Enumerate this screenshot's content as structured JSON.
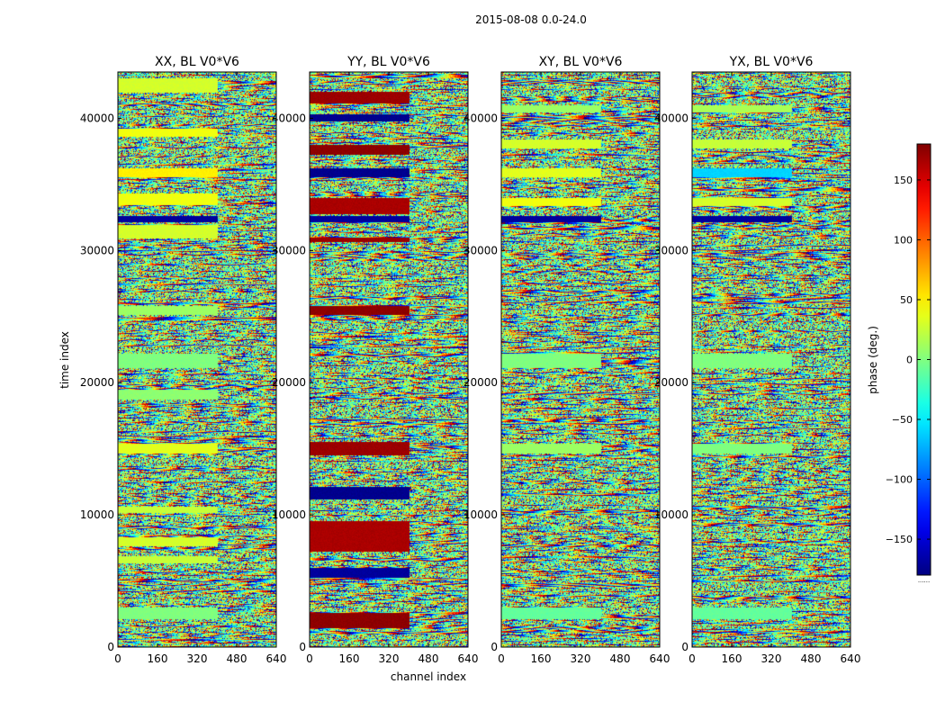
{
  "chart_data": {
    "type": "heatmap",
    "suptitle": "2015-08-08 0.0-24.0",
    "xlabel": "channel index",
    "ylabel": "time index",
    "xlim": [
      0,
      640
    ],
    "ylim": [
      0,
      43500
    ],
    "xticks": [
      0,
      160,
      320,
      480,
      640
    ],
    "yticks": [
      0,
      10000,
      20000,
      30000,
      40000
    ],
    "colormap": "jet",
    "panels": [
      {
        "title": "XX, BL V0*V6",
        "product": "XX",
        "baseline": "V0*V6",
        "smooth_bands": [
          {
            "t0": 43000,
            "t1": 42000,
            "phase": 30
          },
          {
            "t0": 39200,
            "t1": 38700,
            "phase": 40
          },
          {
            "t0": 36200,
            "t1": 35600,
            "phase": 50
          },
          {
            "t0": 34300,
            "t1": 33500,
            "phase": 40
          },
          {
            "t0": 32600,
            "t1": 32200,
            "phase": -170
          },
          {
            "t0": 31900,
            "t1": 31000,
            "phase": 30
          },
          {
            "t0": 25800,
            "t1": 25200,
            "phase": 10
          },
          {
            "t0": 22200,
            "t1": 21200,
            "phase": 0
          },
          {
            "t0": 19500,
            "t1": 18800,
            "phase": 5
          },
          {
            "t0": 15400,
            "t1": 14700,
            "phase": 35
          },
          {
            "t0": 10600,
            "t1": 10200,
            "phase": 25
          },
          {
            "t0": 8300,
            "t1": 7700,
            "phase": 30
          },
          {
            "t0": 6900,
            "t1": 6400,
            "phase": 25
          },
          {
            "t0": 3000,
            "t1": 2200,
            "phase": 0
          }
        ]
      },
      {
        "title": "YY, BL V0*V6",
        "product": "YY",
        "baseline": "V0*V6",
        "smooth_bands": [
          {
            "t0": 42000,
            "t1": 41200,
            "phase": 170
          },
          {
            "t0": 40300,
            "t1": 39800,
            "phase": -175
          },
          {
            "t0": 38000,
            "t1": 37300,
            "phase": 175
          },
          {
            "t0": 36200,
            "t1": 35600,
            "phase": -175
          },
          {
            "t0": 34000,
            "t1": 32800,
            "phase": 165
          },
          {
            "t0": 32600,
            "t1": 32200,
            "phase": -170
          },
          {
            "t0": 31000,
            "t1": 30700,
            "phase": 170
          },
          {
            "t0": 25800,
            "t1": 25200,
            "phase": 175
          },
          {
            "t0": 15500,
            "t1": 14600,
            "phase": 170
          },
          {
            "t0": 12100,
            "t1": 11200,
            "phase": -175
          },
          {
            "t0": 9500,
            "t1": 7300,
            "phase": 165
          },
          {
            "t0": 6000,
            "t1": 5300,
            "phase": -170
          },
          {
            "t0": 2600,
            "t1": 1500,
            "phase": 175
          }
        ]
      },
      {
        "title": "XY, BL V0*V6",
        "product": "XY",
        "baseline": "V0*V6",
        "smooth_bands": [
          {
            "t0": 41000,
            "t1": 40500,
            "phase": 10
          },
          {
            "t0": 38400,
            "t1": 37800,
            "phase": 30
          },
          {
            "t0": 36200,
            "t1": 35600,
            "phase": 35
          },
          {
            "t0": 34000,
            "t1": 33400,
            "phase": 40
          },
          {
            "t0": 32600,
            "t1": 32200,
            "phase": -170
          },
          {
            "t0": 22200,
            "t1": 21200,
            "phase": 0
          },
          {
            "t0": 15400,
            "t1": 14700,
            "phase": 10
          },
          {
            "t0": 3000,
            "t1": 2200,
            "phase": -10
          }
        ]
      },
      {
        "title": "YX, BL V0*V6",
        "product": "YX",
        "baseline": "V0*V6",
        "smooth_bands": [
          {
            "t0": 41000,
            "t1": 40500,
            "phase": 15
          },
          {
            "t0": 38400,
            "t1": 37800,
            "phase": 25
          },
          {
            "t0": 36200,
            "t1": 35600,
            "phase": -60
          },
          {
            "t0": 34000,
            "t1": 33400,
            "phase": 30
          },
          {
            "t0": 32600,
            "t1": 32200,
            "phase": -170
          },
          {
            "t0": 22200,
            "t1": 21200,
            "phase": 0
          },
          {
            "t0": 15400,
            "t1": 14700,
            "phase": 0
          },
          {
            "t0": 3000,
            "t1": 2200,
            "phase": -10
          }
        ]
      }
    ],
    "colorbar": {
      "label": "phase (deg.)",
      "vmin": -180,
      "vmax": 180,
      "ticks": [
        150,
        100,
        50,
        0,
        -50,
        -100,
        -150
      ],
      "tick_labels": [
        "150",
        "100",
        "50",
        "0",
        "−50",
        "−100",
        "−150"
      ],
      "bottom_note": "......"
    }
  }
}
